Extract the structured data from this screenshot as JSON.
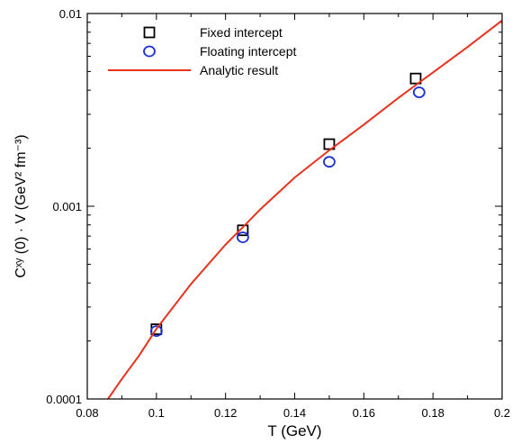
{
  "chart_data": {
    "type": "scatter",
    "x_axis": {
      "label": "T (GeV)",
      "min": 0.08,
      "max": 0.2,
      "ticks": [
        0.08,
        0.1,
        0.12,
        0.14,
        0.16,
        0.18,
        0.2
      ],
      "tick_labels": [
        "0.08",
        "0.1",
        "0.12",
        "0.14",
        "0.16",
        "0.18",
        "0.2"
      ]
    },
    "y_axis": {
      "label": "Cˣʸ (0) · V (GeV² fm⁻³)",
      "scale": "log",
      "min": 0.0001,
      "max": 0.01,
      "ticks": [
        0.0001,
        0.001,
        0.01
      ],
      "tick_labels": [
        "0.0001",
        "0.001",
        "0.01"
      ]
    },
    "grid": false,
    "legend_position": "top-left",
    "series": [
      {
        "name": "Fixed intercept",
        "marker": "square",
        "color": "#000000",
        "points": [
          [
            0.1,
            0.00023
          ],
          [
            0.125,
            0.00075
          ],
          [
            0.15,
            0.0021
          ],
          [
            0.175,
            0.0046
          ]
        ]
      },
      {
        "name": "Floating intercept",
        "marker": "circle",
        "color": "#1a2fd6",
        "points": [
          [
            0.1,
            0.000225
          ],
          [
            0.125,
            0.00069
          ],
          [
            0.15,
            0.0017
          ],
          [
            0.176,
            0.0039
          ]
        ]
      },
      {
        "name": "Analytic result",
        "marker": "line",
        "color": "#e8321e",
        "points": [
          [
            0.086,
            0.0001
          ],
          [
            0.09,
            0.000127
          ],
          [
            0.095,
            0.000168
          ],
          [
            0.1,
            0.000231
          ],
          [
            0.11,
            0.000395
          ],
          [
            0.12,
            0.000633
          ],
          [
            0.125,
            0.000778
          ],
          [
            0.13,
            0.000962
          ],
          [
            0.14,
            0.00141
          ],
          [
            0.15,
            0.00195
          ],
          [
            0.16,
            0.00265
          ],
          [
            0.17,
            0.00365
          ],
          [
            0.175,
            0.00425
          ],
          [
            0.18,
            0.00495
          ],
          [
            0.19,
            0.0067
          ],
          [
            0.2,
            0.0092
          ]
        ]
      }
    ]
  }
}
